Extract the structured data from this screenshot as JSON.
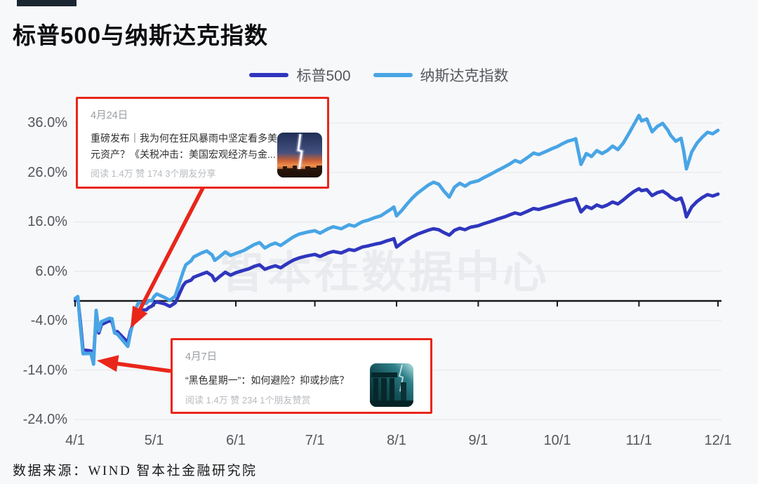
{
  "page": {
    "background": "#f7f8fa",
    "accent_red": "#e9261a"
  },
  "header": {
    "title": "标普500与纳斯达克指数"
  },
  "legend": [
    {
      "label": "标普500",
      "color": "#2f36be"
    },
    {
      "label": "纳斯达克指数",
      "color": "#48a5e5"
    }
  ],
  "watermark": "智本社数据中心",
  "footer": {
    "source": "数据来源：WIND 智本社金融研究院"
  },
  "annotations": [
    {
      "date": "4月24日",
      "title": "重磅发布｜我为何在狂风暴雨中坚定看多美元资产？《关税冲击：美国宏观经济与金...",
      "stats": "阅读 1.4万  赞 174  3个朋友分享",
      "thumb": "lightning-over-city-image"
    },
    {
      "date": "4月7日",
      "title": "“黑色星期一”：如何避险？抑或抄底？",
      "stats": "阅读 1.4万  赞 234  1个朋友赞赏",
      "thumb": "storm-over-ruins-image"
    }
  ],
  "chart_data": {
    "type": "line",
    "title": "标普500与纳斯达克指数",
    "legend_position": "top",
    "grid": true,
    "x_axis": {
      "unit": "date (month/day)",
      "tick_labels": [
        "4/1",
        "5/1",
        "6/1",
        "7/1",
        "8/1",
        "9/1",
        "10/1",
        "11/1",
        "12/1"
      ],
      "tick_days": [
        0,
        30,
        61,
        91,
        122,
        153,
        183,
        214,
        244
      ]
    },
    "y_axis": {
      "unit": "percent change",
      "tick_labels": [
        "36.0%",
        "26.0%",
        "16.0%",
        "6.0%",
        "-4.0%",
        "-14.0%",
        "-24.0%"
      ],
      "tick_values": [
        36,
        26,
        16,
        6,
        -4,
        -14,
        -24
      ],
      "range": [
        -26,
        41
      ],
      "zero_baseline": true
    },
    "days": [
      0,
      1,
      2,
      3,
      6,
      7,
      8,
      9,
      10,
      13,
      14,
      15,
      16,
      20,
      21,
      22,
      23,
      24,
      27,
      28,
      29,
      30,
      31,
      34,
      36,
      38,
      41,
      42,
      44,
      45,
      48,
      50,
      52,
      53,
      55,
      57,
      59,
      61,
      64,
      66,
      68,
      70,
      72,
      74,
      76,
      78,
      81,
      83,
      85,
      88,
      91,
      93,
      96,
      98,
      101,
      104,
      106,
      109,
      111,
      114,
      116,
      118,
      120,
      121,
      122,
      124,
      126,
      128,
      130,
      132,
      134,
      136,
      138,
      140,
      142,
      144,
      146,
      148,
      150,
      153,
      155,
      158,
      160,
      163,
      165,
      167,
      169,
      172,
      174,
      176,
      179,
      181,
      183,
      185,
      187,
      189,
      190,
      192,
      194,
      196,
      198,
      200,
      202,
      204,
      206,
      208,
      210,
      212,
      214,
      215,
      217,
      219,
      221,
      223,
      225,
      226,
      228,
      230,
      231,
      232,
      234,
      236,
      238,
      240,
      242,
      244
    ],
    "series": [
      {
        "name": "标普500",
        "color": "#2f36be",
        "values": [
          0.3,
          0.7,
          -4.2,
          -9.9,
          -10.1,
          -11.5,
          -3.1,
          -6.5,
          -4.8,
          -4.0,
          -4.2,
          -6.3,
          -6.2,
          -8.4,
          -6.1,
          -4.6,
          -2.6,
          -1.9,
          -1.8,
          -1.3,
          -1.1,
          -0.5,
          -0.2,
          -0.6,
          -1.1,
          -0.4,
          3.1,
          3.8,
          4.2,
          4.8,
          5.4,
          5.8,
          5.1,
          4.1,
          5.0,
          5.8,
          5.2,
          5.7,
          6.2,
          6.5,
          7.0,
          7.3,
          6.4,
          6.8,
          7.1,
          6.7,
          7.7,
          8.3,
          8.7,
          9.1,
          9.4,
          9.0,
          9.7,
          10.0,
          9.7,
          10.4,
          10.2,
          10.9,
          11.1,
          11.5,
          11.7,
          12.1,
          12.4,
          12.6,
          10.9,
          11.7,
          12.4,
          13.0,
          13.5,
          13.9,
          14.3,
          14.6,
          14.4,
          13.8,
          13.3,
          14.3,
          14.7,
          14.4,
          14.9,
          15.2,
          15.6,
          16.1,
          16.5,
          17.0,
          17.4,
          17.8,
          17.5,
          18.2,
          18.7,
          18.5,
          19.0,
          19.3,
          19.6,
          20.0,
          20.3,
          20.5,
          20.7,
          18.0,
          19.1,
          18.7,
          19.4,
          19.0,
          19.4,
          20.0,
          19.6,
          20.4,
          21.3,
          22.1,
          22.7,
          22.3,
          22.5,
          21.3,
          21.9,
          22.2,
          21.5,
          21.0,
          20.4,
          20.8,
          19.3,
          17.0,
          19.0,
          20.1,
          20.9,
          21.5,
          21.2,
          21.6
        ]
      },
      {
        "name": "纳斯达克指数",
        "color": "#48a5e5",
        "values": [
          0.5,
          0.9,
          -5.1,
          -10.7,
          -10.6,
          -12.8,
          -1.9,
          -6.1,
          -4.2,
          -3.5,
          -3.6,
          -6.5,
          -6.7,
          -9.2,
          -6.6,
          -4.2,
          -1.6,
          -0.4,
          -0.5,
          0.1,
          0.0,
          0.9,
          1.4,
          0.7,
          0.1,
          1.0,
          5.9,
          7.3,
          8.1,
          8.9,
          9.7,
          10.1,
          9.3,
          8.2,
          9.0,
          9.9,
          9.2,
          9.6,
          10.2,
          10.8,
          11.4,
          11.8,
          10.7,
          11.3,
          11.7,
          11.2,
          12.3,
          13.0,
          13.5,
          13.9,
          14.2,
          13.7,
          14.6,
          15.0,
          14.6,
          15.4,
          15.1,
          16.0,
          16.3,
          16.9,
          17.2,
          17.9,
          18.6,
          19.0,
          17.2,
          18.3,
          19.6,
          20.8,
          21.8,
          22.6,
          23.4,
          24.0,
          23.6,
          22.2,
          21.0,
          23.0,
          23.8,
          23.2,
          23.9,
          24.3,
          24.9,
          25.7,
          26.3,
          27.1,
          27.7,
          28.4,
          28.0,
          29.1,
          29.9,
          29.6,
          30.3,
          30.8,
          31.2,
          31.8,
          32.3,
          32.6,
          32.8,
          27.6,
          29.8,
          29.2,
          30.4,
          29.8,
          30.4,
          31.3,
          30.6,
          31.9,
          33.7,
          35.6,
          37.5,
          36.4,
          36.8,
          34.2,
          35.3,
          35.9,
          34.5,
          33.5,
          32.3,
          32.9,
          30.3,
          26.7,
          30.1,
          31.9,
          33.1,
          34.1,
          33.8,
          34.5
        ]
      }
    ],
    "annotation_arrows": [
      {
        "from_card": "4月24日",
        "points_to": "4/21 低点 (约-9%)"
      },
      {
        "from_card": "4月7日",
        "points_to": "4/8 最低点 (约-12.8%)"
      }
    ]
  }
}
